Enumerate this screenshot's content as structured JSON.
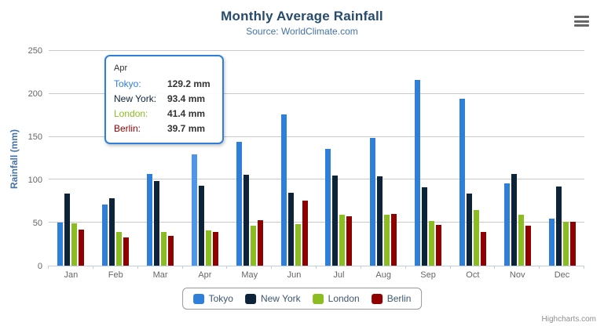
{
  "title": "Monthly Average Rainfall",
  "subtitle": "Source: WorldClimate.com",
  "credit": "Highcharts.com",
  "menu_icon": "hamburger-menu",
  "chart_data": {
    "type": "bar",
    "title": "Monthly Average Rainfall",
    "subtitle": "Source: WorldClimate.com",
    "xlabel": "",
    "ylabel": "Rainfall (mm)",
    "ylim": [
      0,
      250
    ],
    "yticks": [
      0,
      50,
      100,
      150,
      200,
      250
    ],
    "grid": true,
    "legend_position": "bottom",
    "categories": [
      "Jan",
      "Feb",
      "Mar",
      "Apr",
      "May",
      "Jun",
      "Jul",
      "Aug",
      "Sep",
      "Oct",
      "Nov",
      "Dec"
    ],
    "series": [
      {
        "name": "Tokyo",
        "color": "#2f7ed8",
        "hover_color": "#4f96ea",
        "values": [
          49.9,
          71.5,
          106.4,
          129.2,
          144.0,
          176.0,
          135.6,
          148.5,
          216.4,
          194.1,
          95.6,
          54.4
        ]
      },
      {
        "name": "New York",
        "color": "#0d233a",
        "values": [
          83.6,
          78.8,
          98.5,
          93.4,
          106.0,
          84.5,
          105.0,
          104.3,
          91.2,
          83.5,
          106.6,
          92.3
        ]
      },
      {
        "name": "London",
        "color": "#8bbc21",
        "values": [
          48.9,
          38.8,
          39.3,
          41.4,
          47.0,
          48.3,
          59.0,
          59.6,
          52.4,
          65.2,
          59.3,
          51.2
        ]
      },
      {
        "name": "Berlin",
        "color": "#910000",
        "values": [
          42.4,
          33.2,
          34.5,
          39.7,
          52.6,
          75.5,
          57.4,
          60.4,
          47.6,
          39.1,
          46.8,
          51.1
        ]
      }
    ]
  },
  "tooltip": {
    "header": "Apr",
    "hover_series": "Tokyo",
    "hover_category": "Apr",
    "rows": [
      {
        "label": "Tokyo:",
        "value": "129.2 mm",
        "color": "#2f7ed8"
      },
      {
        "label": "New York:",
        "value": "93.4 mm",
        "color": "#0d233a"
      },
      {
        "label": "London:",
        "value": "41.4 mm",
        "color": "#8bbc21"
      },
      {
        "label": "Berlin:",
        "value": "39.7 mm",
        "color": "#910000"
      }
    ]
  },
  "legend": {
    "items": [
      "Tokyo",
      "New York",
      "London",
      "Berlin"
    ]
  }
}
